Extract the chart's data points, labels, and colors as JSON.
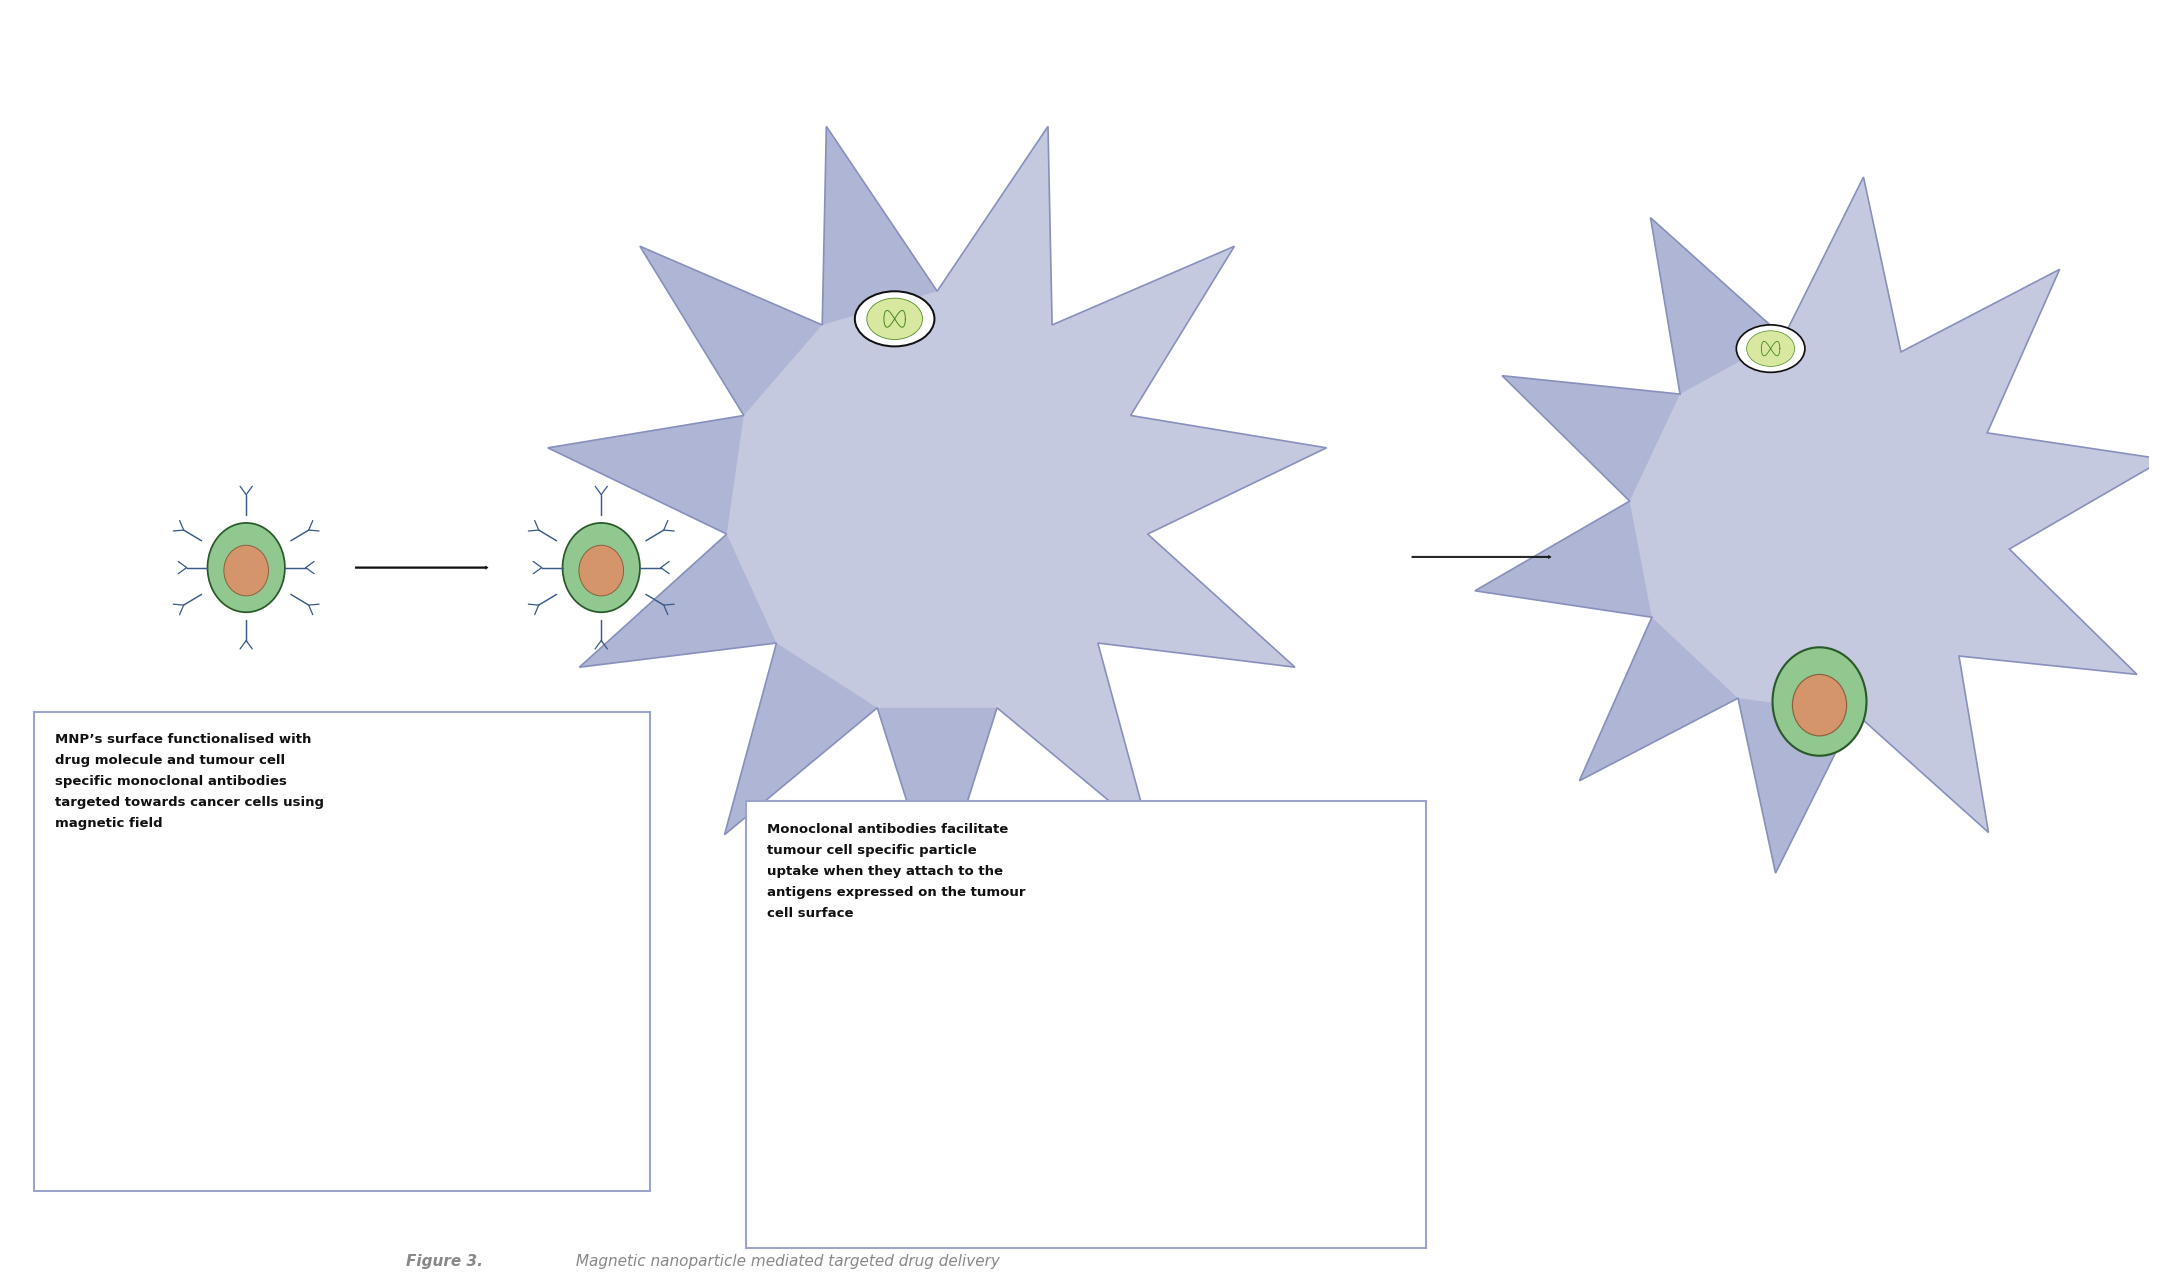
{
  "bg_color": "#ffffff",
  "star_color_light": "#c5c9e0",
  "star_color_mid": "#b0b5d5",
  "star_color_dark": "#8890be",
  "cell_outer_color": "#90c890",
  "cell_inner_color": "#d4956a",
  "cell_border_color": "#2a5a2a",
  "core_border_color": "#8B6040",
  "antibody_color": "#3a5a8a",
  "drug_bg_color": "#ffffff",
  "drug_border_color": "#111111",
  "drug_fill_color": "#d8e8a0",
  "drug_line_color": "#4a8a20",
  "arrow_color": "#111111",
  "box_border_color": "#9aa4cc",
  "text_color": "#111111",
  "figure_label_color": "#888888",
  "label1": "MNP’s surface functionalised with\ndrug molecule and tumour cell\nspecific monoclonal antibodies\ntargeted towards cancer cells using\nmagnetic field",
  "label2": "Monoclonal antibodies facilitate\ntumour cell specific particle\nuptake when they attach to the\nantigens expressed on the tumour\ncell surface",
  "caption_bold": "Figure 3.",
  "caption_italic": " Magnetic nanoparticle mediated targeted drug delivery",
  "figsize": [
    21.72,
    12.84
  ],
  "dpi": 100
}
